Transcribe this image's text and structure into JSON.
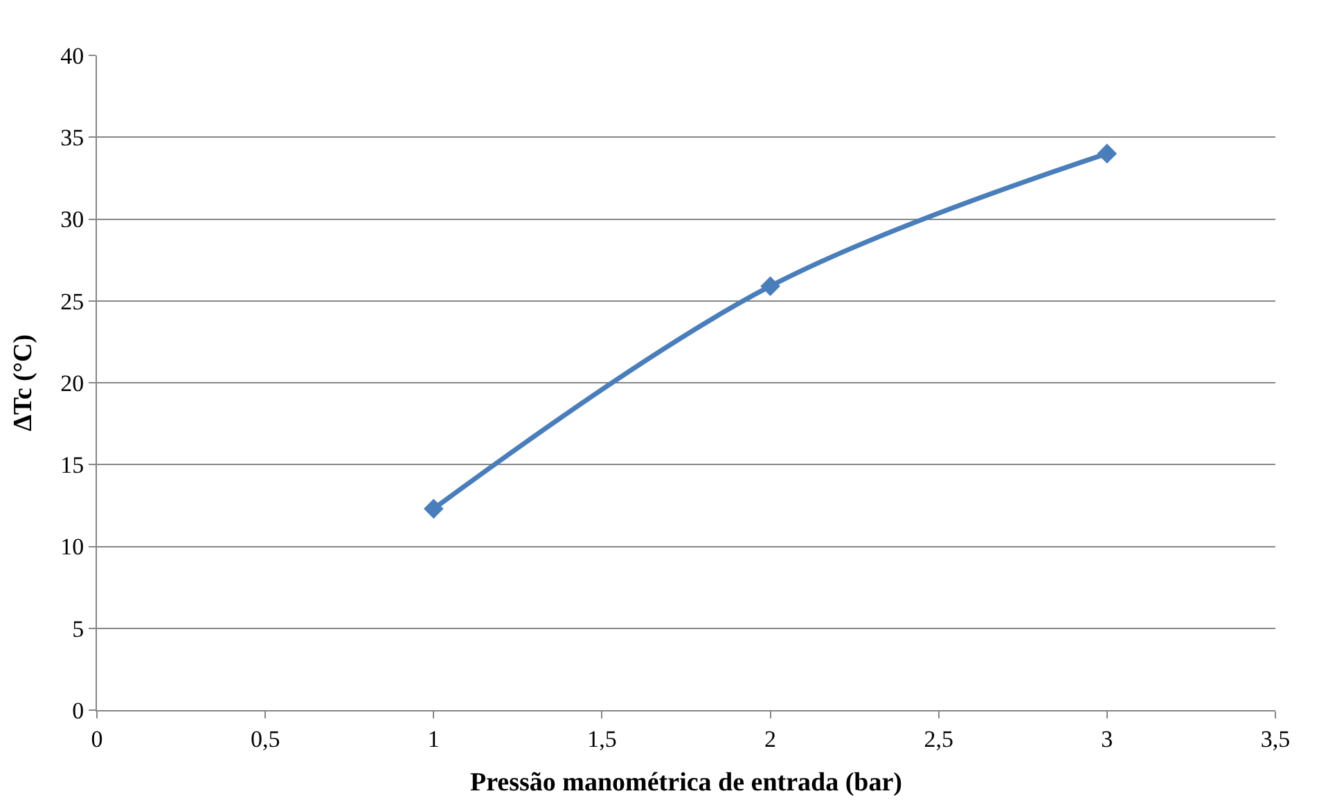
{
  "chart_data": {
    "type": "line",
    "xlabel": "Pressão manométrica de entrada (bar)",
    "ylabel": "ΔTc (°C)",
    "x": [
      1,
      2,
      3
    ],
    "series": [
      {
        "color": "#4a7ebb",
        "values": [
          12.3,
          25.9,
          34.0
        ]
      }
    ],
    "xlim": [
      0,
      3.5
    ],
    "xticks": [
      0,
      {
        "value": 0.5,
        "label": "0,5"
      },
      1,
      {
        "value": 1.5,
        "label": "1,5"
      },
      2,
      {
        "value": 2.5,
        "label": "2,5"
      },
      3,
      {
        "value": 3.5,
        "label": "3,5"
      }
    ],
    "ylim": [
      0,
      40
    ],
    "yticks": [
      0,
      5,
      10,
      15,
      20,
      25,
      30,
      35,
      40
    ],
    "grid": "y",
    "marker": "diamond",
    "line_style": "solid"
  }
}
